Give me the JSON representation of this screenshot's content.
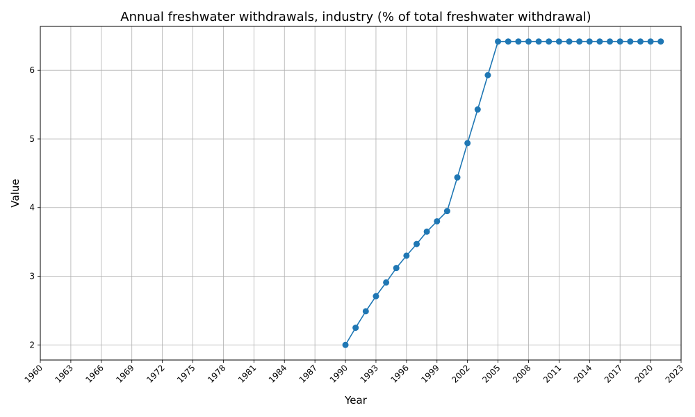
{
  "chart_data": {
    "type": "line",
    "title": "Annual freshwater withdrawals, industry (% of total freshwater withdrawal)",
    "xlabel": "Year",
    "ylabel": "Value",
    "xlim": [
      1960,
      2023
    ],
    "ylim": [
      1.78,
      6.64
    ],
    "x_ticks": [
      1960,
      1963,
      1966,
      1969,
      1972,
      1975,
      1978,
      1981,
      1984,
      1987,
      1990,
      1993,
      1996,
      1999,
      2002,
      2005,
      2008,
      2011,
      2014,
      2017,
      2020,
      2023
    ],
    "y_ticks": [
      2,
      3,
      4,
      5,
      6
    ],
    "grid": true,
    "color": "#1f77b4",
    "series": [
      {
        "x": [
          1990,
          1991,
          1992,
          1993,
          1994,
          1995,
          1996,
          1997,
          1998,
          1999,
          2000,
          2001,
          2002,
          2003,
          2004,
          2005,
          2006,
          2007,
          2008,
          2009,
          2010,
          2011,
          2012,
          2013,
          2014,
          2015,
          2016,
          2017,
          2018,
          2019,
          2020,
          2021
        ],
        "values": [
          2.0,
          2.25,
          2.49,
          2.71,
          2.91,
          3.12,
          3.3,
          3.47,
          3.65,
          3.8,
          3.95,
          4.44,
          4.94,
          5.43,
          5.93,
          6.42,
          6.42,
          6.42,
          6.42,
          6.42,
          6.42,
          6.42,
          6.42,
          6.42,
          6.42,
          6.42,
          6.42,
          6.42,
          6.42,
          6.42,
          6.42,
          6.42
        ]
      }
    ]
  }
}
